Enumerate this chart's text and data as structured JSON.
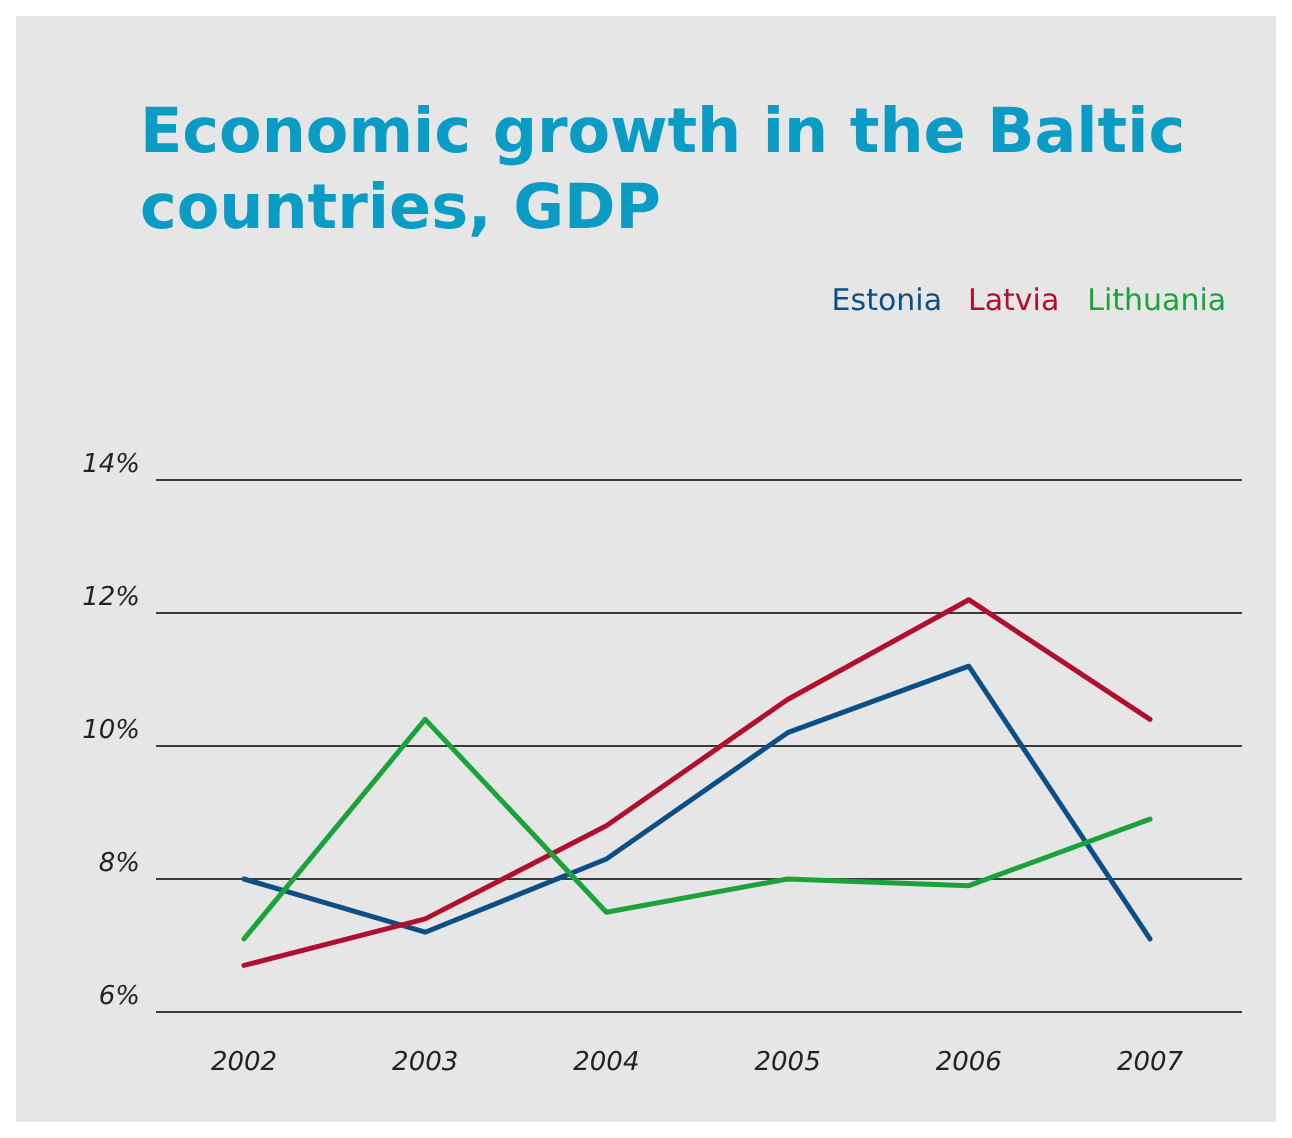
{
  "chart_data": {
    "type": "line",
    "title": "Economic growth in the Baltic countries, GDP",
    "categories": [
      "2002",
      "2003",
      "2004",
      "2005",
      "2006",
      "2007"
    ],
    "series": [
      {
        "name": "Estonia",
        "color": "#0b4f86",
        "values": [
          8.0,
          7.2,
          8.3,
          10.2,
          11.2,
          7.1
        ]
      },
      {
        "name": "Latvia",
        "color": "#b0102e",
        "values": [
          6.7,
          7.4,
          8.8,
          10.7,
          12.2,
          10.4
        ]
      },
      {
        "name": "Lithuania",
        "color": "#1aa33a",
        "values": [
          7.1,
          10.4,
          7.5,
          8.0,
          7.9,
          8.9
        ]
      }
    ],
    "ylim": [
      6,
      14
    ],
    "yticks": [
      {
        "value": 6,
        "label": "6%"
      },
      {
        "value": 8,
        "label": "8%"
      },
      {
        "value": 10,
        "label": "10%"
      },
      {
        "value": 12,
        "label": "12%"
      },
      {
        "value": 14,
        "label": "14%"
      }
    ],
    "grid": "y",
    "legend": "top right"
  }
}
